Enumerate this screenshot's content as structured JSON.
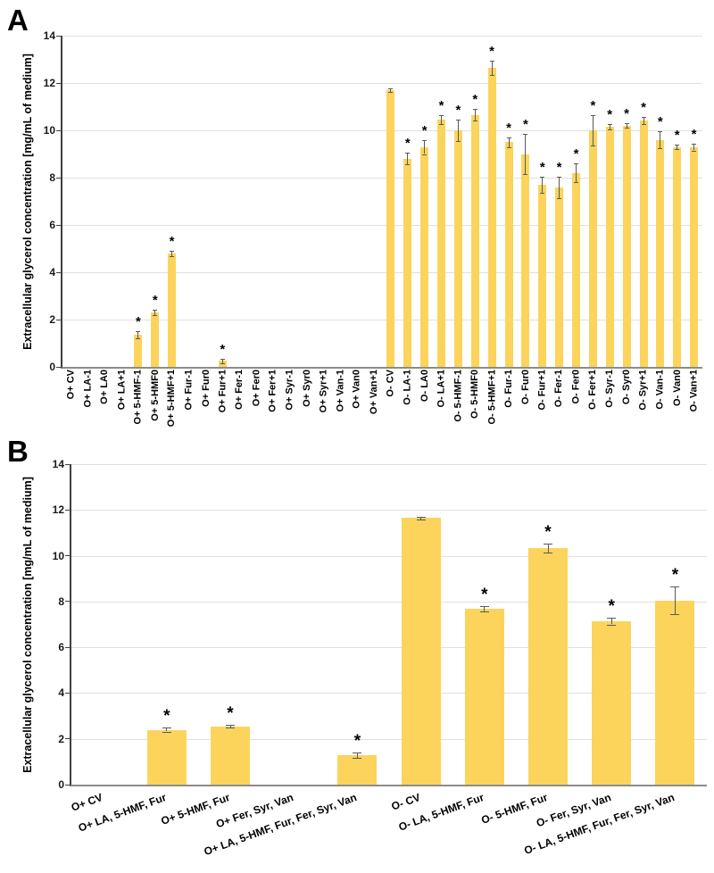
{
  "colors": {
    "bar": "#FCD45C",
    "gridline": "#E0E0E0",
    "axis_left": "#404040",
    "axis_bottom": "#8C8C8C",
    "error_bar": "#595959",
    "asterisk": "#000000"
  },
  "chart_data": [
    {
      "type": "bar",
      "panel_label": "A",
      "ylabel": "Extracellular glycerol concentration [mg/mL of medium]",
      "xlabel": "",
      "ylim": [
        0,
        14
      ],
      "yticks": [
        0,
        2,
        4,
        6,
        8,
        10,
        12,
        14
      ],
      "grid": true,
      "legend": "none",
      "significance_marker": "*",
      "categories": [
        "O+ CV",
        "O+ LA-1",
        "O+ LA0",
        "O+ LA+1",
        "O+ 5-HMF-1",
        "O+ 5-HMF0",
        "O+ 5-HMF+1",
        "O+ Fur-1",
        "O+ Fur0",
        "O+ Fur+1",
        "O+ Fer-1",
        "O+ Fer0",
        "O+ Fer+1",
        "O+ Syr-1",
        "O+ Syr0",
        "O+ Syr+1",
        "O+ Van-1",
        "O+ Van0",
        "O+ Van+1",
        "O- CV",
        "O- LA-1",
        "O- LA0",
        "O- LA+1",
        "O- 5-HMF-1",
        "O- 5-HMF0",
        "O- 5-HMF+1",
        "O- Fur-1",
        "O- Fur0",
        "O- Fur+1",
        "O- Fer-1",
        "O- Fer0",
        "O- Fer+1",
        "O- Syr-1",
        "O- Syr0",
        "O- Syr+1",
        "O- Van-1",
        "O- Van0",
        "O- Van+1"
      ],
      "values": [
        0,
        0,
        0,
        0,
        1.35,
        2.3,
        4.8,
        0,
        0,
        0.25,
        0,
        0,
        0,
        0,
        0,
        0,
        0,
        0,
        0,
        11.7,
        8.8,
        9.3,
        10.45,
        10.0,
        10.65,
        12.65,
        9.5,
        9.0,
        7.7,
        7.6,
        8.2,
        10.0,
        10.15,
        10.2,
        10.4,
        9.6,
        9.3,
        9.3
      ],
      "errors": [
        0,
        0,
        0,
        0,
        0.15,
        0.12,
        0.12,
        0,
        0,
        0.1,
        0,
        0,
        0,
        0,
        0,
        0,
        0,
        0,
        0,
        0.07,
        0.25,
        0.3,
        0.2,
        0.45,
        0.25,
        0.3,
        0.2,
        0.85,
        0.35,
        0.45,
        0.4,
        0.65,
        0.1,
        0.1,
        0.15,
        0.35,
        0.1,
        0.15
      ],
      "significant": [
        false,
        false,
        false,
        false,
        true,
        true,
        true,
        false,
        false,
        true,
        false,
        false,
        false,
        false,
        false,
        false,
        false,
        false,
        false,
        false,
        true,
        true,
        true,
        true,
        true,
        true,
        true,
        true,
        true,
        true,
        true,
        true,
        true,
        true,
        true,
        true,
        true,
        true
      ]
    },
    {
      "type": "bar",
      "panel_label": "B",
      "ylabel": "Extracellular glycerol concentration [mg/mL of medium]",
      "xlabel": "",
      "ylim": [
        0,
        14
      ],
      "yticks": [
        0,
        2,
        4,
        6,
        8,
        10,
        12,
        14
      ],
      "grid": true,
      "legend": "none",
      "significance_marker": "*",
      "categories": [
        "O+ CV",
        "O+ LA, 5-HMF, Fur",
        "O+ 5-HMF, Fur",
        "O+ Fer, Syr, Van",
        "O+ LA, 5-HMF, Fur, Fer, Syr, Van",
        "O- CV",
        "O- LA, 5-HMF, Fur",
        "O- 5-HMF, Fur",
        "O- Fer, Syr, Van",
        "O- LA, 5-HMF, Fur, Fer, Syr, Van"
      ],
      "values": [
        0,
        2.4,
        2.55,
        0,
        1.3,
        11.65,
        7.7,
        10.35,
        7.15,
        8.05
      ],
      "errors": [
        0,
        0.08,
        0.07,
        0,
        0.12,
        0.07,
        0.12,
        0.2,
        0.15,
        0.6
      ],
      "significant": [
        false,
        true,
        true,
        false,
        true,
        false,
        true,
        true,
        true,
        true
      ]
    }
  ]
}
